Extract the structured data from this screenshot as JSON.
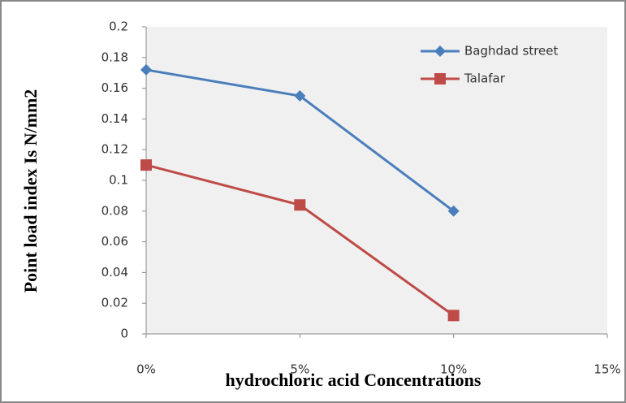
{
  "chart_data": {
    "type": "line",
    "x_label": "hydrochloric acid Concentrations",
    "y_label": "Point load index Is N/mm2",
    "x": [
      0,
      5,
      10
    ],
    "series": [
      {
        "name": "Baghdad street",
        "color": "#4a7ebb",
        "marker": "diamond",
        "values": [
          0.172,
          0.155,
          0.08
        ]
      },
      {
        "name": "Talafar",
        "color": "#be4b48",
        "marker": "square",
        "values": [
          0.11,
          0.084,
          0.012
        ]
      }
    ],
    "xlim": [
      0,
      15
    ],
    "xticks": [
      {
        "value": 0,
        "label": "0%"
      },
      {
        "value": 5,
        "label": "5%"
      },
      {
        "value": 10,
        "label": "10%"
      },
      {
        "value": 15,
        "label": "15%"
      }
    ],
    "ylim": [
      0,
      0.2
    ],
    "yticks": [
      0,
      0.02,
      0.04,
      0.06,
      0.08,
      0.1,
      0.12,
      0.14,
      0.16,
      0.18,
      0.2
    ],
    "grid": false,
    "legend": "top-right"
  }
}
